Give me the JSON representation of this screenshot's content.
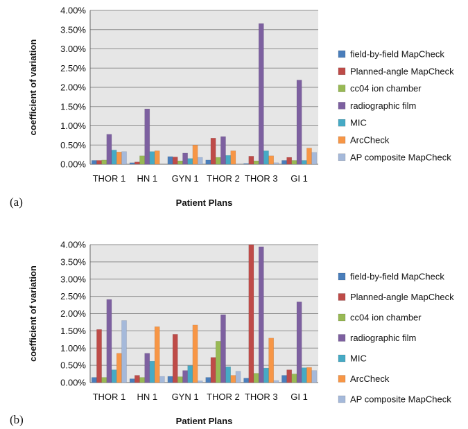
{
  "chart_data": [
    {
      "type": "bar",
      "panel_label": "(a)",
      "xlabel": "Patient Plans",
      "ylabel": "coefficient of variation",
      "ylim": [
        0,
        0.04
      ],
      "yticks": [
        "0.00%",
        "0.50%",
        "1.00%",
        "1.50%",
        "2.00%",
        "2.50%",
        "3.00%",
        "3.50%",
        "4.00%"
      ],
      "grid": true,
      "legend_position": "right",
      "categories": [
        "THOR 1",
        "HN 1",
        "GYN 1",
        "THOR 2",
        "THOR 3",
        "GI 1"
      ],
      "series": [
        {
          "name": "field-by-field MapCheck",
          "color": "#4A7EBB",
          "values": [
            0.001,
            0.0004,
            0.002,
            0.0011,
            0.0002,
            0.001
          ]
        },
        {
          "name": "Planned-angle MapCheck",
          "color": "#BE4B48",
          "values": [
            0.001,
            0.0006,
            0.0019,
            0.0068,
            0.0021,
            0.0018
          ]
        },
        {
          "name": "cc04 ion chamber",
          "color": "#98B954",
          "values": [
            0.0011,
            0.0022,
            0.0009,
            0.0018,
            0.0009,
            0.001
          ]
        },
        {
          "name": "radiographic film",
          "color": "#7D60A0",
          "values": [
            0.0078,
            0.0144,
            0.0029,
            0.0072,
            0.0366,
            0.0219
          ]
        },
        {
          "name": "MIC",
          "color": "#46AAC5",
          "values": [
            0.0037,
            0.0033,
            0.0015,
            0.0023,
            0.0035,
            0.001
          ]
        },
        {
          "name": "ArcCheck",
          "color": "#F79646",
          "values": [
            0.0032,
            0.0035,
            0.005,
            0.0035,
            0.0022,
            0.0042
          ]
        },
        {
          "name": "AP composite MapCheck",
          "color": "#A5B9DA",
          "values": [
            0.0033,
            0.0,
            0.0018,
            0.0,
            0.0004,
            0.0031
          ]
        }
      ]
    },
    {
      "type": "bar",
      "panel_label": "(b)",
      "xlabel": "Patient Plans",
      "ylabel": "coefficient of variation",
      "ylim": [
        0,
        0.04
      ],
      "yticks": [
        "0.00%",
        "0.50%",
        "1.00%",
        "1.50%",
        "2.00%",
        "2.50%",
        "3.00%",
        "3.50%",
        "4.00%"
      ],
      "grid": true,
      "legend_position": "right",
      "categories": [
        "THOR 1",
        "HN 1",
        "GYN 1",
        "THOR 2",
        "THOR 3",
        "GI 1"
      ],
      "series": [
        {
          "name": "field-by-field MapCheck",
          "color": "#4A7EBB",
          "values": [
            0.0015,
            0.0011,
            0.0018,
            0.0015,
            0.0013,
            0.0021
          ]
        },
        {
          "name": "Planned-angle MapCheck",
          "color": "#BE4B48",
          "values": [
            0.0154,
            0.0021,
            0.014,
            0.0073,
            0.04,
            0.0037
          ]
        },
        {
          "name": "cc04 ion chamber",
          "color": "#98B954",
          "values": [
            0.0015,
            0.0015,
            0.0017,
            0.012,
            0.0027,
            0.0025
          ]
        },
        {
          "name": "radiographic film",
          "color": "#7D60A0",
          "values": [
            0.0241,
            0.0085,
            0.0035,
            0.0197,
            0.0394,
            0.0234
          ]
        },
        {
          "name": "MIC",
          "color": "#46AAC5",
          "values": [
            0.0037,
            0.0062,
            0.0049,
            0.0046,
            0.0042,
            0.0043
          ]
        },
        {
          "name": "ArcCheck",
          "color": "#F79646",
          "values": [
            0.0085,
            0.0162,
            0.0167,
            0.0021,
            0.0129,
            0.0044
          ]
        },
        {
          "name": "AP composite MapCheck",
          "color": "#A5B9DA",
          "values": [
            0.018,
            0.0018,
            0.0005,
            0.0033,
            0.0006,
            0.0035
          ]
        }
      ]
    }
  ]
}
